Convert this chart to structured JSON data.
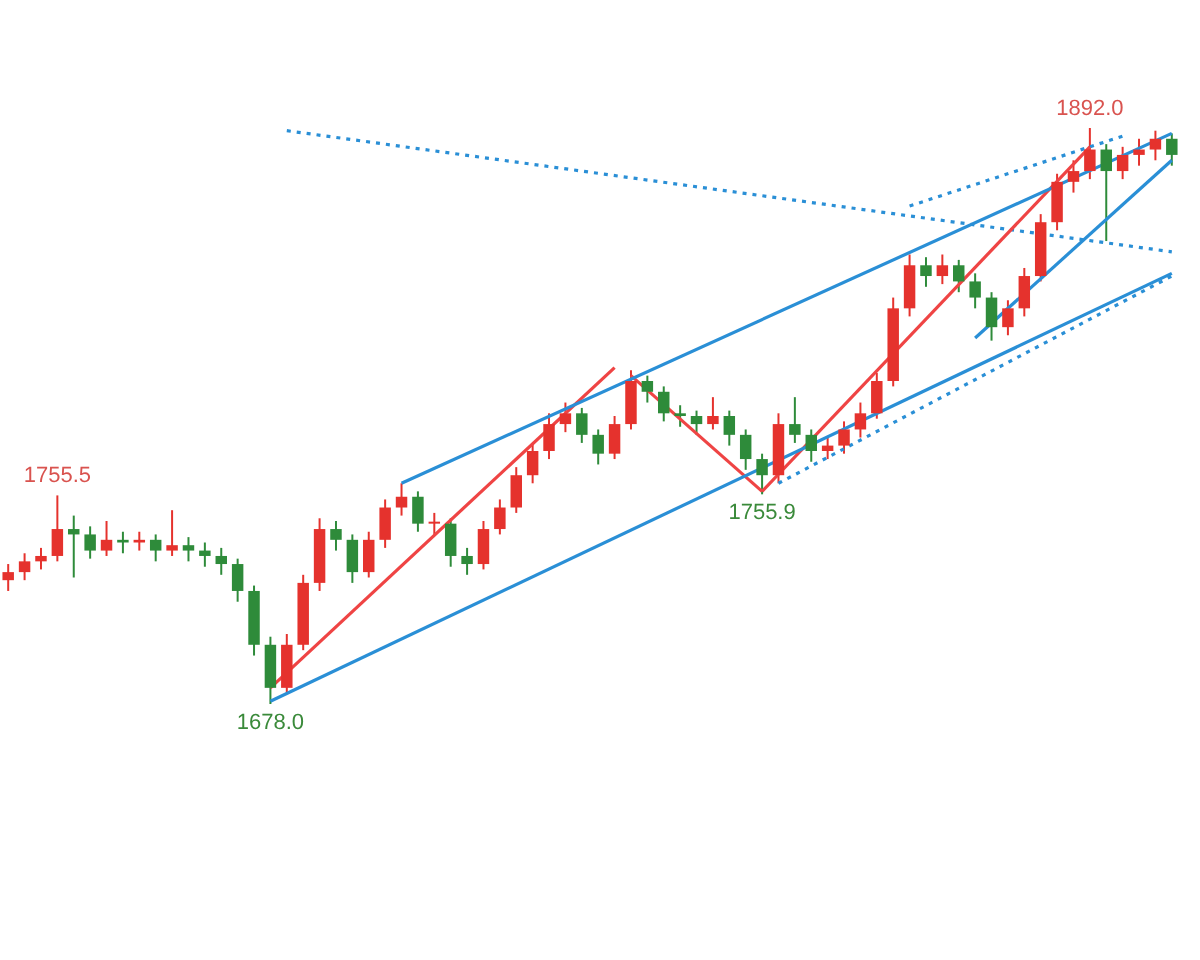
{
  "chart_data": {
    "type": "candlestick",
    "categories": [
      null,
      null,
      null,
      null,
      null,
      null,
      null,
      null,
      null,
      null,
      null,
      null,
      null,
      null,
      null,
      null,
      null,
      null,
      null,
      null,
      null,
      null,
      null,
      null,
      null,
      null,
      null,
      null,
      null,
      null,
      null,
      null,
      null,
      null,
      null,
      null,
      null,
      null,
      null,
      null,
      null,
      null,
      null,
      null,
      null,
      null,
      null,
      null,
      null,
      null,
      null,
      null,
      null,
      null,
      null,
      null,
      null,
      null,
      null,
      null,
      null,
      null,
      null,
      null,
      null,
      null,
      null,
      null,
      null,
      null,
      null,
      null
    ],
    "ohlc": [
      [
        1724,
        1730,
        1720,
        1727
      ],
      [
        1727,
        1734,
        1724,
        1731
      ],
      [
        1731,
        1736,
        1728,
        1733
      ],
      [
        1733,
        1755.5,
        1731,
        1743
      ],
      [
        1743,
        1748,
        1725,
        1741
      ],
      [
        1741,
        1744,
        1732,
        1735
      ],
      [
        1735,
        1746,
        1733,
        1739
      ],
      [
        1739,
        1742,
        1734,
        1738
      ],
      [
        1738,
        1742,
        1735,
        1739
      ],
      [
        1739,
        1741,
        1731,
        1735
      ],
      [
        1735,
        1750,
        1733,
        1737
      ],
      [
        1737,
        1740,
        1731,
        1735
      ],
      [
        1735,
        1738,
        1729,
        1733
      ],
      [
        1733,
        1736,
        1726,
        1730
      ],
      [
        1730,
        1732,
        1716,
        1720
      ],
      [
        1720,
        1722,
        1696,
        1700
      ],
      [
        1700,
        1703,
        1678.0,
        1684
      ],
      [
        1684,
        1704,
        1682,
        1700
      ],
      [
        1700,
        1726,
        1698,
        1723
      ],
      [
        1723,
        1747,
        1720,
        1743
      ],
      [
        1743,
        1746,
        1735,
        1739
      ],
      [
        1739,
        1741,
        1723,
        1727
      ],
      [
        1727,
        1742,
        1725,
        1739
      ],
      [
        1739,
        1754,
        1736,
        1751
      ],
      [
        1751,
        1760,
        1748,
        1755
      ],
      [
        1755,
        1757,
        1742,
        1745
      ],
      [
        1745,
        1749,
        1741,
        1745
      ],
      [
        1745,
        1747,
        1729,
        1733
      ],
      [
        1733,
        1736,
        1726,
        1730
      ],
      [
        1730,
        1746,
        1728,
        1743
      ],
      [
        1743,
        1754,
        1741,
        1751
      ],
      [
        1751,
        1766,
        1749,
        1763
      ],
      [
        1763,
        1775,
        1760,
        1772
      ],
      [
        1772,
        1786,
        1769,
        1782
      ],
      [
        1782,
        1790,
        1779,
        1786
      ],
      [
        1786,
        1788,
        1775,
        1778
      ],
      [
        1778,
        1780,
        1767,
        1771
      ],
      [
        1771,
        1785,
        1769,
        1782
      ],
      [
        1782,
        1802,
        1780,
        1798
      ],
      [
        1798,
        1800,
        1790,
        1794
      ],
      [
        1794,
        1796,
        1783,
        1786
      ],
      [
        1786,
        1789,
        1781,
        1785
      ],
      [
        1785,
        1787,
        1778,
        1782
      ],
      [
        1782,
        1792,
        1780,
        1785
      ],
      [
        1785,
        1787,
        1774,
        1778
      ],
      [
        1778,
        1780,
        1765,
        1769
      ],
      [
        1769,
        1771,
        1755.9,
        1763
      ],
      [
        1763,
        1786,
        1760,
        1782
      ],
      [
        1782,
        1792,
        1775,
        1778
      ],
      [
        1778,
        1780,
        1768,
        1772
      ],
      [
        1772,
        1777,
        1769,
        1774
      ],
      [
        1774,
        1783,
        1771,
        1780
      ],
      [
        1780,
        1790,
        1777,
        1786
      ],
      [
        1786,
        1801,
        1784,
        1798
      ],
      [
        1798,
        1829,
        1796,
        1825
      ],
      [
        1825,
        1845,
        1822,
        1841
      ],
      [
        1841,
        1844,
        1833,
        1837
      ],
      [
        1837,
        1845,
        1834,
        1841
      ],
      [
        1841,
        1843,
        1831,
        1835
      ],
      [
        1835,
        1838,
        1825,
        1829
      ],
      [
        1829,
        1831,
        1813,
        1818
      ],
      [
        1818,
        1828,
        1815,
        1825
      ],
      [
        1825,
        1840,
        1822,
        1837
      ],
      [
        1837,
        1860,
        1835,
        1857
      ],
      [
        1857,
        1875,
        1854,
        1872
      ],
      [
        1872,
        1880,
        1868,
        1876
      ],
      [
        1876,
        1892.0,
        1873,
        1884
      ],
      [
        1884,
        1886,
        1850,
        1876
      ],
      [
        1876,
        1885,
        1873,
        1882
      ],
      [
        1882,
        1888,
        1878,
        1884
      ],
      [
        1884,
        1891,
        1880,
        1888
      ],
      [
        1888,
        1890,
        1878,
        1882
      ]
    ],
    "colors": [
      "#e5322d",
      "#e5322d",
      "#e5322d",
      "#e5322d",
      "#2e8b3a",
      "#2e8b3a",
      "#e5322d",
      "#2e8b3a",
      "#e5322d",
      "#2e8b3a",
      "#e5322d",
      "#2e8b3a",
      "#2e8b3a",
      "#2e8b3a",
      "#2e8b3a",
      "#2e8b3a",
      "#2e8b3a",
      "#e5322d",
      "#e5322d",
      "#e5322d",
      "#2e8b3a",
      "#2e8b3a",
      "#e5322d",
      "#e5322d",
      "#e5322d",
      "#2e8b3a",
      "#e5322d",
      "#2e8b3a",
      "#2e8b3a",
      "#e5322d",
      "#e5322d",
      "#e5322d",
      "#e5322d",
      "#e5322d",
      "#e5322d",
      "#2e8b3a",
      "#2e8b3a",
      "#e5322d",
      "#e5322d",
      "#2e8b3a",
      "#2e8b3a",
      "#2e8b3a",
      "#2e8b3a",
      "#e5322d",
      "#2e8b3a",
      "#2e8b3a",
      "#2e8b3a",
      "#e5322d",
      "#2e8b3a",
      "#2e8b3a",
      "#e5322d",
      "#e5322d",
      "#e5322d",
      "#e5322d",
      "#e5322d",
      "#e5322d",
      "#2e8b3a",
      "#e5322d",
      "#2e8b3a",
      "#2e8b3a",
      "#2e8b3a",
      "#e5322d",
      "#e5322d",
      "#e5322d",
      "#e5322d",
      "#e5322d",
      "#e5322d",
      "#2e8b3a",
      "#e5322d",
      "#e5322d",
      "#e5322d",
      "#2e8b3a"
    ],
    "series": [
      {
        "type": "line",
        "color": "#2a8fd6",
        "values": [
          null,
          null,
          null,
          null,
          null,
          null,
          null,
          null,
          null,
          null,
          null,
          null,
          null,
          null,
          null,
          null,
          null,
          null,
          null,
          null,
          null,
          null,
          null,
          null,
          1760,
          null,
          null,
          null,
          null,
          null,
          null,
          null,
          null,
          null,
          null,
          null,
          null,
          null,
          null,
          null,
          null,
          null,
          null,
          null,
          null,
          null,
          null,
          null,
          null,
          null,
          null,
          null,
          null,
          null,
          null,
          null,
          null,
          null,
          null,
          null,
          null,
          null,
          null,
          null,
          null,
          null,
          null,
          null,
          null,
          null,
          null,
          1890
        ]
      },
      {
        "type": "line",
        "color": "#2a8fd6",
        "values": [
          null,
          null,
          null,
          null,
          null,
          null,
          null,
          null,
          null,
          null,
          null,
          null,
          null,
          null,
          null,
          null,
          1679,
          null,
          null,
          null,
          null,
          null,
          null,
          null,
          null,
          null,
          null,
          null,
          null,
          null,
          null,
          null,
          null,
          null,
          null,
          null,
          null,
          null,
          null,
          null,
          null,
          null,
          null,
          null,
          null,
          null,
          null,
          null,
          null,
          null,
          null,
          null,
          null,
          null,
          null,
          null,
          null,
          null,
          null,
          null,
          null,
          null,
          null,
          null,
          null,
          null,
          null,
          null,
          null,
          null,
          null,
          1838
        ]
      },
      {
        "type": "line",
        "color": "#2a8fd6",
        "values": [
          null,
          null,
          null,
          null,
          null,
          null,
          null,
          null,
          null,
          null,
          null,
          null,
          null,
          null,
          null,
          null,
          null,
          null,
          null,
          null,
          null,
          null,
          null,
          null,
          null,
          null,
          null,
          null,
          null,
          null,
          null,
          null,
          null,
          null,
          null,
          null,
          null,
          null,
          null,
          null,
          null,
          null,
          null,
          null,
          null,
          null,
          null,
          null,
          null,
          null,
          null,
          null,
          null,
          null,
          null,
          null,
          null,
          null,
          null,
          1814,
          null,
          null,
          null,
          null,
          null,
          null,
          null,
          null,
          null,
          null,
          null,
          1880
        ]
      },
      {
        "type": "line",
        "color": "#ef4444",
        "values": [
          null,
          null,
          null,
          null,
          null,
          null,
          null,
          null,
          null,
          null,
          null,
          null,
          null,
          null,
          null,
          null,
          1684,
          null,
          null,
          null,
          null,
          null,
          null,
          null,
          null,
          null,
          null,
          null,
          null,
          null,
          null,
          null,
          null,
          null,
          null,
          null,
          null,
          1803,
          null,
          null,
          null,
          null,
          null,
          null,
          null,
          null,
          null,
          null,
          null,
          null,
          null,
          null,
          null,
          null,
          null,
          null,
          null,
          null,
          null,
          null,
          null,
          null,
          null,
          null,
          null,
          null,
          null,
          null,
          null,
          null,
          null,
          null
        ]
      },
      {
        "type": "line",
        "color": "#ef4444",
        "values": [
          null,
          null,
          null,
          null,
          null,
          null,
          null,
          null,
          null,
          null,
          null,
          null,
          null,
          null,
          null,
          null,
          null,
          null,
          null,
          null,
          null,
          null,
          null,
          null,
          null,
          null,
          null,
          null,
          null,
          null,
          null,
          null,
          null,
          null,
          null,
          null,
          null,
          null,
          1800,
          null,
          null,
          null,
          null,
          null,
          null,
          null,
          1757,
          null,
          null,
          null,
          null,
          null,
          null,
          null,
          null,
          null,
          null,
          null,
          null,
          null,
          null,
          null,
          null,
          null,
          null,
          null,
          null,
          null,
          null,
          null,
          null,
          null
        ]
      },
      {
        "type": "line",
        "color": "#ef4444",
        "values": [
          null,
          null,
          null,
          null,
          null,
          null,
          null,
          null,
          null,
          null,
          null,
          null,
          null,
          null,
          null,
          null,
          null,
          null,
          null,
          null,
          null,
          null,
          null,
          null,
          null,
          null,
          null,
          null,
          null,
          null,
          null,
          null,
          null,
          null,
          null,
          null,
          null,
          null,
          null,
          null,
          null,
          null,
          null,
          null,
          null,
          null,
          1757,
          null,
          null,
          null,
          null,
          null,
          null,
          null,
          null,
          null,
          null,
          null,
          null,
          null,
          null,
          null,
          null,
          null,
          null,
          null,
          1885,
          null,
          null,
          null,
          null,
          null
        ]
      },
      {
        "type": "line",
        "color": "#2a8fd6",
        "line_style": "dotted",
        "values": [
          null,
          null,
          null,
          null,
          null,
          null,
          null,
          null,
          null,
          null,
          null,
          null,
          null,
          null,
          null,
          null,
          null,
          1891,
          null,
          null,
          null,
          null,
          null,
          null,
          null,
          null,
          null,
          null,
          null,
          null,
          null,
          null,
          null,
          null,
          null,
          null,
          null,
          null,
          null,
          null,
          null,
          null,
          null,
          null,
          null,
          null,
          null,
          null,
          null,
          null,
          null,
          null,
          null,
          null,
          null,
          null,
          null,
          null,
          null,
          null,
          null,
          null,
          null,
          null,
          null,
          null,
          null,
          null,
          null,
          null,
          null,
          1846
        ]
      },
      {
        "type": "line",
        "color": "#2a8fd6",
        "line_style": "dotted",
        "values": [
          null,
          null,
          null,
          null,
          null,
          null,
          null,
          null,
          null,
          null,
          null,
          null,
          null,
          null,
          null,
          null,
          null,
          null,
          null,
          null,
          null,
          null,
          null,
          null,
          null,
          null,
          null,
          null,
          null,
          null,
          null,
          null,
          null,
          null,
          null,
          null,
          null,
          null,
          null,
          null,
          null,
          null,
          null,
          null,
          null,
          null,
          null,
          null,
          null,
          null,
          null,
          null,
          null,
          null,
          null,
          1863,
          null,
          null,
          null,
          null,
          null,
          null,
          null,
          null,
          null,
          null,
          null,
          null,
          1889,
          null,
          null,
          null
        ]
      },
      {
        "type": "line",
        "color": "#2a8fd6",
        "line_style": "dotted",
        "values": [
          null,
          null,
          null,
          null,
          null,
          null,
          null,
          null,
          null,
          null,
          null,
          null,
          null,
          null,
          null,
          null,
          null,
          null,
          null,
          null,
          null,
          null,
          null,
          null,
          null,
          null,
          null,
          null,
          null,
          null,
          null,
          null,
          null,
          null,
          null,
          null,
          null,
          null,
          null,
          null,
          null,
          null,
          null,
          null,
          null,
          null,
          null,
          1760,
          null,
          null,
          null,
          null,
          null,
          null,
          null,
          null,
          null,
          null,
          null,
          null,
          null,
          null,
          null,
          null,
          null,
          null,
          null,
          null,
          null,
          null,
          null,
          1837
        ]
      }
    ],
    "annotations": [
      {
        "text": "1755.5",
        "y": 1755.5
      },
      {
        "text": "1678.0",
        "y": 1678.0
      },
      {
        "text": "1755.9",
        "y": 1755.9
      },
      {
        "text": "1892.0",
        "y": 1892.0
      }
    ],
    "grid": false,
    "legend": false
  }
}
